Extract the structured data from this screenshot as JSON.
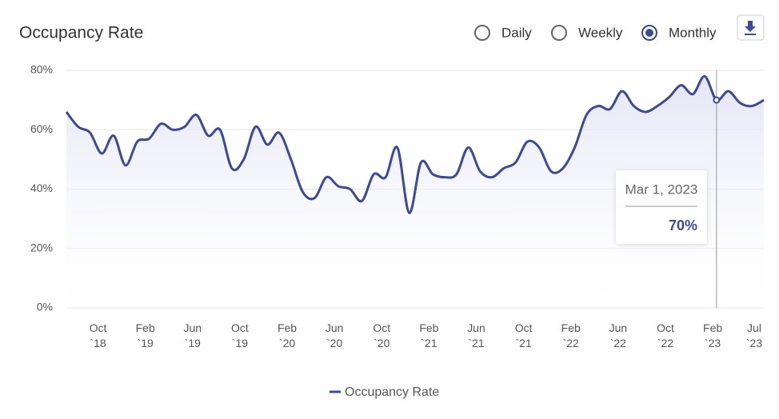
{
  "header": {
    "title": "Occupancy Rate",
    "options": [
      "Daily",
      "Weekly",
      "Monthly"
    ],
    "selected": 2
  },
  "chart_data": {
    "type": "line",
    "x": [
      "2018-08",
      "2018-09",
      "2018-10",
      "2018-11",
      "2018-12",
      "2019-01",
      "2019-02",
      "2019-03",
      "2019-04",
      "2019-05",
      "2019-06",
      "2019-07",
      "2019-08",
      "2019-09",
      "2019-10",
      "2019-11",
      "2019-12",
      "2020-01",
      "2020-02",
      "2020-03",
      "2020-04",
      "2020-05",
      "2020-06",
      "2020-07",
      "2020-08",
      "2020-09",
      "2020-10",
      "2020-11",
      "2020-12",
      "2021-01",
      "2021-02",
      "2021-03",
      "2021-04",
      "2021-05",
      "2021-06",
      "2021-07",
      "2021-08",
      "2021-09",
      "2021-10",
      "2021-11",
      "2021-12",
      "2022-01",
      "2022-02",
      "2022-03",
      "2022-04",
      "2022-05",
      "2022-06",
      "2022-07",
      "2022-08",
      "2022-09",
      "2022-10",
      "2022-11",
      "2022-12",
      "2023-01",
      "2023-02",
      "2023-03",
      "2023-04",
      "2023-05",
      "2023-06",
      "2023-07"
    ],
    "series": [
      {
        "name": "Occupancy Rate",
        "color": "#3d4a9a",
        "values": [
          66,
          61,
          59,
          52,
          58,
          48,
          56,
          57,
          62,
          60,
          61,
          65,
          58,
          60,
          47,
          50,
          61,
          55,
          59,
          50,
          39,
          37,
          44,
          41,
          40,
          36,
          45,
          44,
          54,
          32,
          49,
          45,
          44,
          45,
          54,
          46,
          44,
          47,
          49,
          56,
          54,
          46,
          47,
          54,
          65,
          68,
          67,
          73,
          68,
          66,
          68,
          71,
          75,
          72,
          78,
          70,
          73,
          69,
          68,
          70
        ]
      }
    ],
    "xlim": [
      "2018-08",
      "2023-07"
    ],
    "xticks": [
      {
        "value": "2018-10",
        "label": "Oct `18"
      },
      {
        "value": "2019-02",
        "label": "Feb `19"
      },
      {
        "value": "2019-06",
        "label": "Jun `19"
      },
      {
        "value": "2019-10",
        "label": "Oct `19"
      },
      {
        "value": "2020-02",
        "label": "Feb `20"
      },
      {
        "value": "2020-06",
        "label": "Jun `20"
      },
      {
        "value": "2020-10",
        "label": "Oct `20"
      },
      {
        "value": "2021-02",
        "label": "Feb `21"
      },
      {
        "value": "2021-06",
        "label": "Jun `21"
      },
      {
        "value": "2021-10",
        "label": "Oct `21"
      },
      {
        "value": "2022-02",
        "label": "Feb `22"
      },
      {
        "value": "2022-06",
        "label": "Jun `22"
      },
      {
        "value": "2022-10",
        "label": "Oct `22"
      },
      {
        "value": "2023-02",
        "label": "Feb `23"
      },
      {
        "value": "2023-07",
        "label": "Jul `23"
      }
    ],
    "ylim": [
      0,
      80
    ],
    "yticks": [
      {
        "value": 0,
        "label": "0%"
      },
      {
        "value": 20,
        "label": "20%"
      },
      {
        "value": 40,
        "label": "40%"
      },
      {
        "value": 60,
        "label": "60%"
      },
      {
        "value": 80,
        "label": "80%"
      }
    ],
    "grid": true,
    "legend": "bottom",
    "tooltip": {
      "label": "Mar 1, 2023",
      "index": 55,
      "value": 70,
      "value_label": "70%"
    }
  }
}
